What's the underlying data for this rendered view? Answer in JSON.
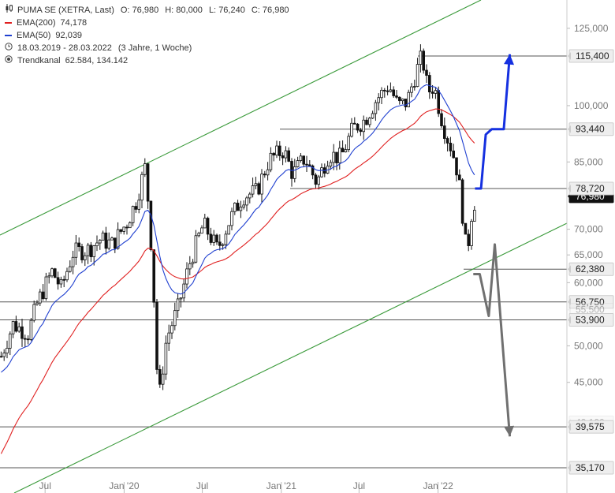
{
  "legend": {
    "title": "PUMA SE (XETRA, Last)",
    "open_label": "O:",
    "open": "76,980",
    "high_label": "H:",
    "high": "80,000",
    "low_label": "L:",
    "low": "76,240",
    "close_label": "C:",
    "close": "76,980",
    "ema200_label": "EMA(200)",
    "ema200_value": "74,178",
    "ema50_label": "EMA(50)",
    "ema50_value": "92,039",
    "range": "18.03.2019 - 28.03.2022",
    "range_note": "(3 Jahre, 1 Woche)",
    "channel_label": "Trendkanal",
    "channel_values": "62.584, 134.142"
  },
  "colors": {
    "ema200": "#e02020",
    "ema50": "#2040d0",
    "channel": "#3a9a3a",
    "candle_up": "#ffffff",
    "candle_down": "#111111",
    "bull_arrow": "#1530e0",
    "bear_arrow": "#707070",
    "level_line": "#555555"
  },
  "chart_data": {
    "type": "candlestick",
    "instrument": "PUMA SE (XETRA, Last)",
    "period": "18.03.2019 - 28.03.2022",
    "y_scale": "log",
    "ylim": [
      35.17,
      125
    ],
    "x_ticks": [
      "Jul",
      "Jan '20",
      "Jul",
      "Jan '21",
      "Jul",
      "Jan '22"
    ],
    "y_ticks": [
      "125,000",
      "100,000",
      "85,000",
      "70,000",
      "65,000",
      "60,000",
      "50,000",
      "45,000"
    ],
    "price_labels": [
      "115,400",
      "93,440",
      "78,720",
      "76,980",
      "62,380",
      "56,750",
      "55,500",
      "53,900",
      "40,100",
      "39,575",
      "35,170"
    ],
    "horizontal_levels": [
      115.4,
      93.44,
      78.72,
      62.38,
      56.75,
      53.9,
      39.575,
      35.17
    ],
    "last_price": 76.98,
    "ema200_last": 74.178,
    "ema50_last": 92.039,
    "trend_channel": [
      62.584,
      134.142
    ],
    "scenarios": [
      {
        "name": "bullish",
        "path": [
          [
            "2022-03-28",
            78.72
          ],
          [
            "2022-04-11",
            78.72
          ],
          [
            "2022-04-22",
            92.0
          ],
          [
            "2022-05-06",
            93.44
          ],
          [
            "2022-06-03",
            93.44
          ],
          [
            "2022-06-17",
            116.0
          ]
        ]
      },
      {
        "name": "bearish",
        "path": [
          [
            "2022-03-24",
            61.5
          ],
          [
            "2022-04-08",
            61.5
          ],
          [
            "2022-04-29",
            54.5
          ],
          [
            "2022-05-13",
            67.0
          ],
          [
            "2022-06-17",
            38.5
          ]
        ]
      }
    ],
    "ohlc_anchors": [
      [
        "2019-03-18",
        48.5
      ],
      [
        "2019-04-15",
        53.2
      ],
      [
        "2019-05-20",
        51.8
      ],
      [
        "2019-06-10",
        56.5
      ],
      [
        "2019-07-15",
        62.0
      ],
      [
        "2019-08-05",
        59.0
      ],
      [
        "2019-09-02",
        65.5
      ],
      [
        "2019-10-07",
        66.0
      ],
      [
        "2019-11-04",
        68.0
      ],
      [
        "2019-12-02",
        67.0
      ],
      [
        "2020-01-06",
        71.5
      ],
      [
        "2020-01-27",
        76.0
      ],
      [
        "2020-02-17",
        84.0
      ],
      [
        "2020-03-02",
        66.0
      ],
      [
        "2020-03-18",
        42.0
      ],
      [
        "2020-04-06",
        51.0
      ],
      [
        "2020-05-04",
        56.0
      ],
      [
        "2020-06-01",
        64.0
      ],
      [
        "2020-07-01",
        71.0
      ],
      [
        "2020-08-03",
        66.0
      ],
      [
        "2020-09-01",
        72.0
      ],
      [
        "2020-10-01",
        77.0
      ],
      [
        "2020-11-02",
        78.0
      ],
      [
        "2020-12-01",
        85.5
      ],
      [
        "2021-01-04",
        88.0
      ],
      [
        "2021-01-25",
        82.0
      ],
      [
        "2021-02-22",
        86.0
      ],
      [
        "2021-03-22",
        80.0
      ],
      [
        "2021-04-19",
        87.0
      ],
      [
        "2021-05-17",
        86.0
      ],
      [
        "2021-06-14",
        93.5
      ],
      [
        "2021-07-12",
        96.0
      ],
      [
        "2021-08-09",
        102.0
      ],
      [
        "2021-09-06",
        106.0
      ],
      [
        "2021-09-27",
        100.0
      ],
      [
        "2021-10-18",
        101.0
      ],
      [
        "2021-11-08",
        110.0
      ],
      [
        "2021-11-22",
        115.4
      ],
      [
        "2021-12-06",
        104.0
      ],
      [
        "2021-12-20",
        106.0
      ],
      [
        "2022-01-03",
        98.0
      ],
      [
        "2022-01-17",
        92.0
      ],
      [
        "2022-01-31",
        88.0
      ],
      [
        "2022-02-14",
        82.0
      ],
      [
        "2022-02-28",
        70.0
      ],
      [
        "2022-03-07",
        64.0
      ],
      [
        "2022-03-14",
        72.0
      ],
      [
        "2022-03-28",
        76.98
      ]
    ]
  }
}
